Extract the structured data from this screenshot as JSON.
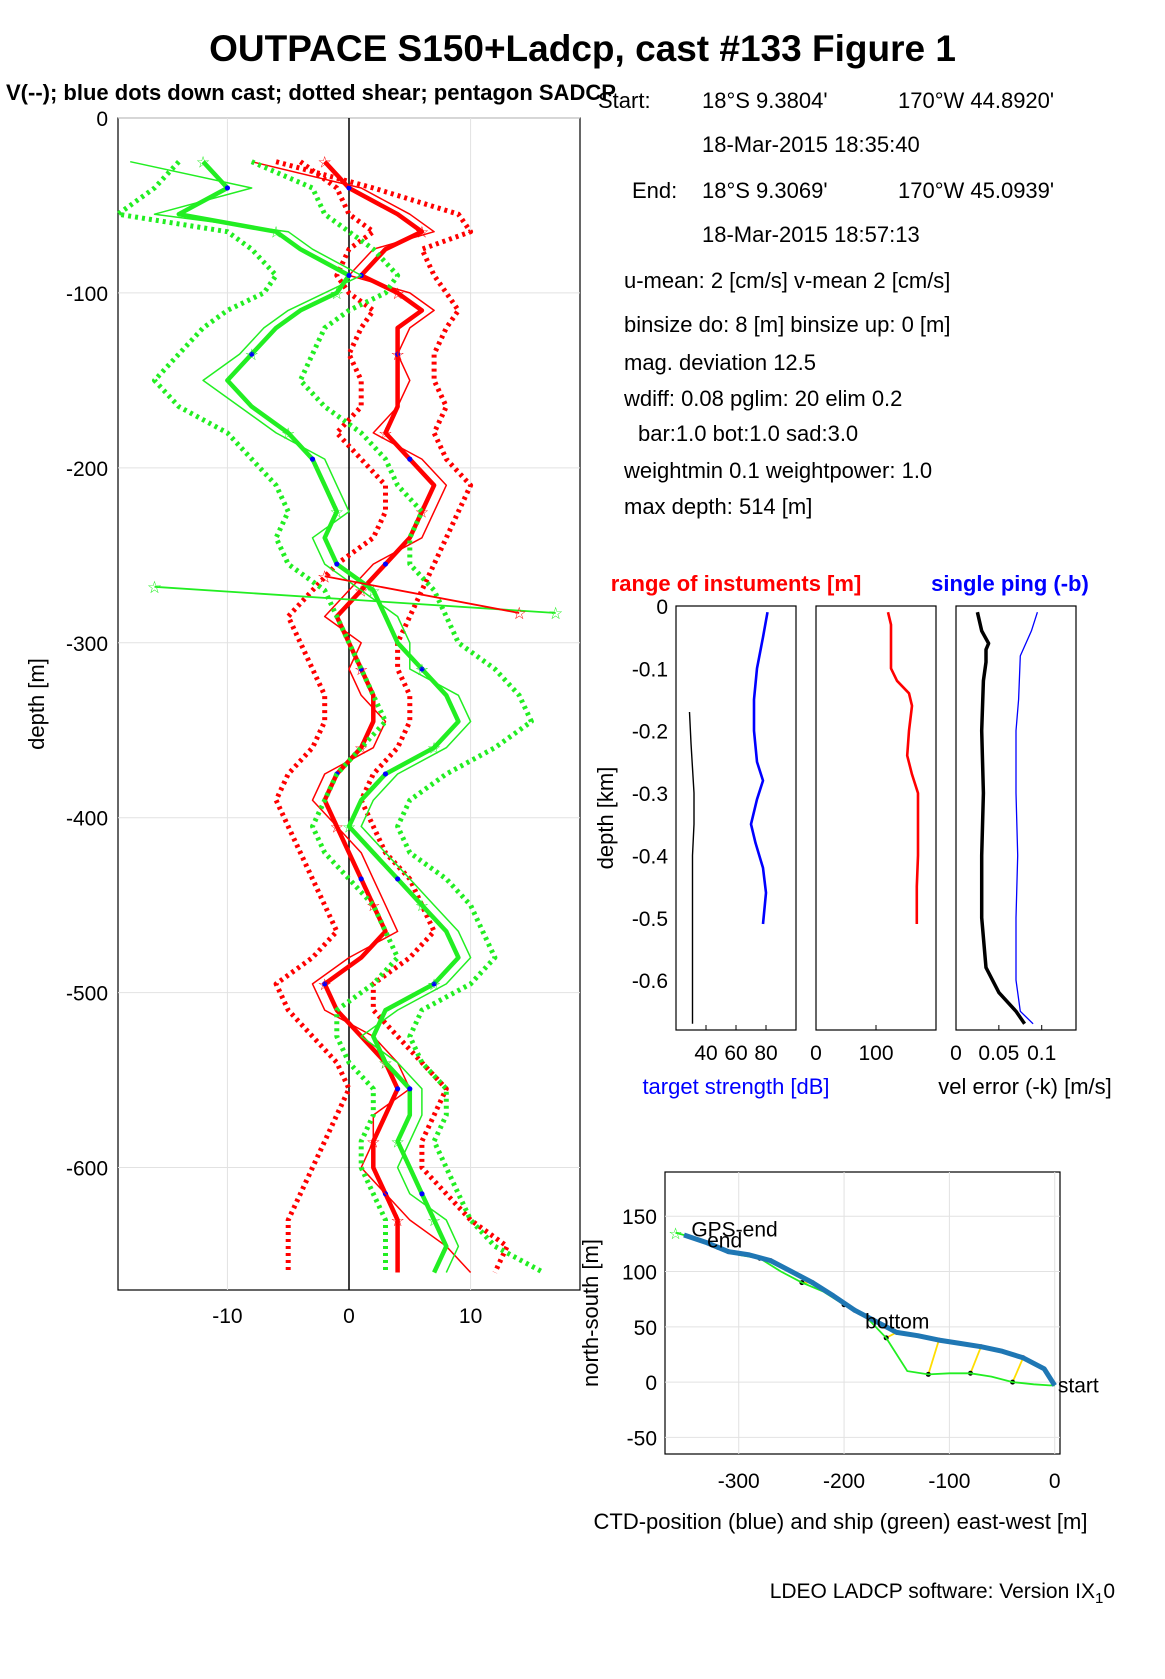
{
  "title": "OUTPACE S150+Ladcp, cast #133  Figure 1",
  "subtitle": "V(--); blue dots down cast; dotted shear; pentagon SADCP",
  "info": {
    "start_label": "Start:",
    "start_lat": "18°S  9.3804'",
    "start_lon": "170°W 44.8920'",
    "start_time": "18-Mar-2015 18:35:40",
    "end_label": "End:",
    "end_lat": "18°S  9.3069'",
    "end_lon": "170°W 45.0939'",
    "end_time": "18-Mar-2015 18:57:13",
    "umean": "u-mean:   2 [cm/s]    v-mean   2 [cm/s]",
    "binsize": "binsize do: 8 [m]  binsize up:  0 [m]",
    "magdev": "mag. deviation 12.5",
    "wdiff": "wdiff: 0.08  pglim: 20  elim 0.2",
    "bar": "bar:1.0 bot:1.0 sad:3.0",
    "weight": "weightmin 0.1  weightpower: 1.0",
    "maxdepth": "max depth: 514 [m]"
  },
  "footer": "LDEO LADCP software: Version IX",
  "footer_sub": "1",
  "footer_tail": "0",
  "colors": {
    "red": "#ff0000",
    "green": "#22ee22",
    "blue": "#0000ff",
    "black": "#000000",
    "ctd": "#1f77b4",
    "yellow": "#ffdd00"
  },
  "chart_data": [
    {
      "id": "velocity",
      "type": "line",
      "ylabel": "depth [m]",
      "xlim": [
        -19,
        19
      ],
      "ylim": [
        -670,
        0
      ],
      "xticks": [
        -10,
        0,
        10
      ],
      "yticks": [
        0,
        -100,
        -200,
        -300,
        -400,
        -500,
        -600
      ],
      "grid": true,
      "depths": [
        -25,
        -40,
        -55,
        -65,
        -75,
        -90,
        -100,
        -110,
        -120,
        -135,
        -150,
        -165,
        -180,
        -195,
        -210,
        -225,
        -240,
        -255,
        -270,
        -285,
        -300,
        -315,
        -330,
        -345,
        -360,
        -375,
        -390,
        -405,
        -420,
        -435,
        -450,
        -465,
        -480,
        -495,
        -510,
        -525,
        -540,
        -555,
        -570,
        -585,
        -600,
        -615,
        -630,
        -645,
        -660
      ],
      "series": [
        {
          "color": "red",
          "kind": "thick",
          "values": [
            -2,
            0,
            4,
            6,
            3,
            1,
            4,
            6,
            4,
            4,
            4,
            4,
            3,
            5,
            7,
            6,
            5,
            3,
            1,
            -1,
            0,
            1,
            2,
            2,
            1,
            -1,
            -2,
            -1,
            0,
            1,
            2,
            3,
            1,
            -2,
            -1,
            1,
            3,
            4,
            3,
            2,
            2,
            3,
            4,
            4,
            4
          ]
        },
        {
          "color": "red",
          "kind": "dotted_right",
          "values": [
            -6,
            2,
            9,
            10,
            6,
            7,
            8,
            9,
            8,
            7,
            7,
            8,
            7,
            8,
            10,
            9,
            8,
            7,
            6,
            5,
            4,
            4,
            5,
            5,
            4,
            2,
            1,
            2,
            3,
            5,
            6,
            7,
            5,
            2,
            2,
            4,
            6,
            8,
            7,
            6,
            6,
            8,
            10,
            13,
            12
          ]
        },
        {
          "color": "red",
          "kind": "dotted_left",
          "values": [
            -4,
            -1,
            0,
            2,
            0,
            -1,
            0,
            2,
            1,
            0,
            1,
            1,
            -1,
            1,
            3,
            3,
            2,
            -1,
            -3,
            -5,
            -4,
            -3,
            -2,
            -2,
            -3,
            -5,
            -6,
            -5,
            -4,
            -3,
            -2,
            -1,
            -3,
            -6,
            -5,
            -3,
            -1,
            0,
            -1,
            -2,
            -3,
            -4,
            -5,
            -5,
            -5
          ]
        },
        {
          "color": "red",
          "kind": "thin",
          "values": [
            -8,
            1,
            5,
            7,
            2,
            0,
            5,
            7,
            5,
            4,
            5,
            4,
            2,
            6,
            8,
            7,
            6,
            2,
            0,
            -2,
            1,
            0,
            1,
            3,
            2,
            -2,
            -3,
            -1,
            1,
            2,
            3,
            4,
            0,
            -3,
            -2,
            2,
            4,
            5,
            2,
            2,
            1,
            3,
            5,
            8,
            10
          ]
        },
        {
          "color": "green",
          "kind": "thick",
          "values": [
            -12,
            -10,
            -14,
            -6,
            -4,
            0,
            -1,
            -4,
            -6,
            -8,
            -10,
            -8,
            -5,
            -3,
            -2,
            -1,
            -2,
            -1,
            2,
            3,
            4,
            6,
            8,
            9,
            7,
            3,
            1,
            0,
            2,
            4,
            6,
            8,
            9,
            7,
            3,
            2,
            3,
            5,
            5,
            4,
            5,
            6,
            7,
            8,
            7
          ]
        },
        {
          "color": "green",
          "kind": "dotted_right",
          "values": [
            -8,
            -3,
            -2,
            0,
            2,
            4,
            3,
            0,
            -2,
            -3,
            -4,
            -2,
            1,
            3,
            4,
            6,
            5,
            5,
            7,
            8,
            9,
            12,
            14,
            15,
            12,
            8,
            5,
            4,
            5,
            8,
            10,
            11,
            12,
            10,
            6,
            5,
            6,
            8,
            8,
            7,
            8,
            9,
            10,
            12,
            16
          ]
        },
        {
          "color": "green",
          "kind": "dotted_left",
          "values": [
            -14,
            -16,
            -19,
            -10,
            -8,
            -6,
            -7,
            -10,
            -12,
            -14,
            -16,
            -14,
            -10,
            -8,
            -6,
            -5,
            -6,
            -5,
            -2,
            -1,
            0,
            1,
            2,
            3,
            1,
            -1,
            -2,
            -3,
            -2,
            0,
            2,
            3,
            4,
            2,
            -1,
            -1,
            0,
            2,
            2,
            1,
            1,
            2,
            3,
            3,
            3
          ]
        },
        {
          "color": "green",
          "kind": "thin",
          "values": [
            -18,
            -8,
            -16,
            -5,
            -3,
            1,
            -2,
            -5,
            -7,
            -9,
            -12,
            -9,
            -6,
            -2,
            -1,
            0,
            -3,
            -2,
            1,
            4,
            5,
            5,
            9,
            10,
            8,
            4,
            2,
            1,
            3,
            5,
            7,
            9,
            10,
            8,
            4,
            1,
            4,
            6,
            6,
            5,
            4,
            5,
            8,
            9,
            8
          ]
        }
      ],
      "outliers": [
        {
          "color": "green",
          "x": [
            -16,
            17
          ],
          "y": [
            -268,
            -283
          ]
        },
        {
          "color": "red",
          "x": [
            -2,
            14
          ],
          "y": [
            -262,
            -283
          ]
        }
      ]
    },
    {
      "id": "target-strength",
      "type": "line",
      "ylabel": "depth [km]",
      "xlabel": "target strength [dB]",
      "xlim": [
        20,
        100
      ],
      "ylim": [
        -0.68,
        0
      ],
      "xticks": [
        40,
        60,
        80
      ],
      "yticks": [
        0,
        -0.1,
        -0.2,
        -0.3,
        -0.4,
        -0.5,
        -0.6
      ],
      "series": [
        {
          "color": "blue",
          "depth": [
            -0.01,
            -0.05,
            -0.1,
            -0.15,
            -0.2,
            -0.25,
            -0.28,
            -0.31,
            -0.35,
            -0.38,
            -0.42,
            -0.46,
            -0.51
          ],
          "values": [
            81,
            78,
            74,
            72,
            72,
            74,
            78,
            74,
            70,
            73,
            78,
            80,
            78
          ]
        },
        {
          "color": "black",
          "depth": [
            -0.17,
            -0.22,
            -0.26,
            -0.3,
            -0.35,
            -0.4,
            -0.45,
            -0.5,
            -0.55,
            -0.6,
            -0.67
          ],
          "values": [
            29,
            30,
            31,
            32,
            32,
            31,
            31,
            31,
            31,
            31,
            31
          ]
        }
      ]
    },
    {
      "id": "range",
      "type": "line",
      "title": "range of instuments [m]",
      "xlim": [
        0,
        200
      ],
      "ylim": [
        -0.68,
        0
      ],
      "xticks": [
        0,
        100
      ],
      "series": [
        {
          "color": "red",
          "depth": [
            -0.01,
            -0.03,
            -0.07,
            -0.1,
            -0.12,
            -0.14,
            -0.16,
            -0.2,
            -0.24,
            -0.27,
            -0.3,
            -0.4,
            -0.45,
            -0.51
          ],
          "values": [
            120,
            125,
            125,
            125,
            135,
            155,
            160,
            155,
            152,
            160,
            170,
            170,
            168,
            168
          ]
        }
      ]
    },
    {
      "id": "vel-error",
      "type": "line",
      "title": "single ping (-b)",
      "xlabel": "vel error (-k) [m/s]",
      "xlim": [
        0,
        0.14
      ],
      "ylim": [
        -0.68,
        0
      ],
      "xticks": [
        0,
        0.05,
        0.1
      ],
      "series": [
        {
          "color": "black",
          "depth": [
            -0.01,
            -0.04,
            -0.06,
            -0.07,
            -0.09,
            -0.12,
            -0.2,
            -0.3,
            -0.4,
            -0.5,
            -0.58,
            -0.62,
            -0.65,
            -0.67
          ],
          "values": [
            0.025,
            0.03,
            0.038,
            0.035,
            0.035,
            0.032,
            0.03,
            0.032,
            0.03,
            0.03,
            0.035,
            0.05,
            0.07,
            0.08
          ]
        },
        {
          "color": "blue",
          "depth": [
            -0.01,
            -0.04,
            -0.08,
            -0.15,
            -0.2,
            -0.3,
            -0.4,
            -0.5,
            -0.6,
            -0.65,
            -0.67
          ],
          "values": [
            0.095,
            0.088,
            0.075,
            0.073,
            0.07,
            0.07,
            0.072,
            0.07,
            0.07,
            0.075,
            0.09
          ]
        }
      ]
    },
    {
      "id": "position",
      "type": "line",
      "xlabel": "CTD-position (blue) and ship (green) east-west [m]",
      "ylabel": "north-south [m]",
      "xlim": [
        -370,
        5
      ],
      "ylim": [
        -65,
        190
      ],
      "xticks": [
        -300,
        -200,
        -100,
        0
      ],
      "yticks": [
        150,
        100,
        50,
        0,
        -50
      ],
      "grid": true,
      "labels": [
        {
          "text": "GPS-end",
          "x": -345,
          "y": 138
        },
        {
          "text": "end",
          "x": -330,
          "y": 128
        },
        {
          "text": "bottom",
          "x": -180,
          "y": 55
        },
        {
          "text": "start",
          "x": 3,
          "y": -3
        }
      ],
      "ctd": {
        "x": [
          -352,
          -330,
          -310,
          -290,
          -270,
          -250,
          -230,
          -210,
          -190,
          -170,
          -150,
          -130,
          -110,
          -90,
          -70,
          -50,
          -30,
          -10,
          0
        ],
        "y": [
          133,
          126,
          118,
          115,
          110,
          100,
          90,
          78,
          65,
          55,
          45,
          42,
          38,
          35,
          32,
          28,
          22,
          12,
          -3
        ]
      },
      "ship": {
        "x": [
          -360,
          -340,
          -320,
          -300,
          -280,
          -260,
          -240,
          -220,
          -200,
          -180,
          -160,
          -140,
          -120,
          -100,
          -80,
          -60,
          -40,
          -20,
          -5,
          0
        ],
        "y": [
          135,
          130,
          122,
          115,
          112,
          100,
          90,
          82,
          70,
          60,
          40,
          10,
          7,
          8,
          8,
          5,
          0,
          -2,
          -3,
          -3
        ]
      }
    }
  ]
}
